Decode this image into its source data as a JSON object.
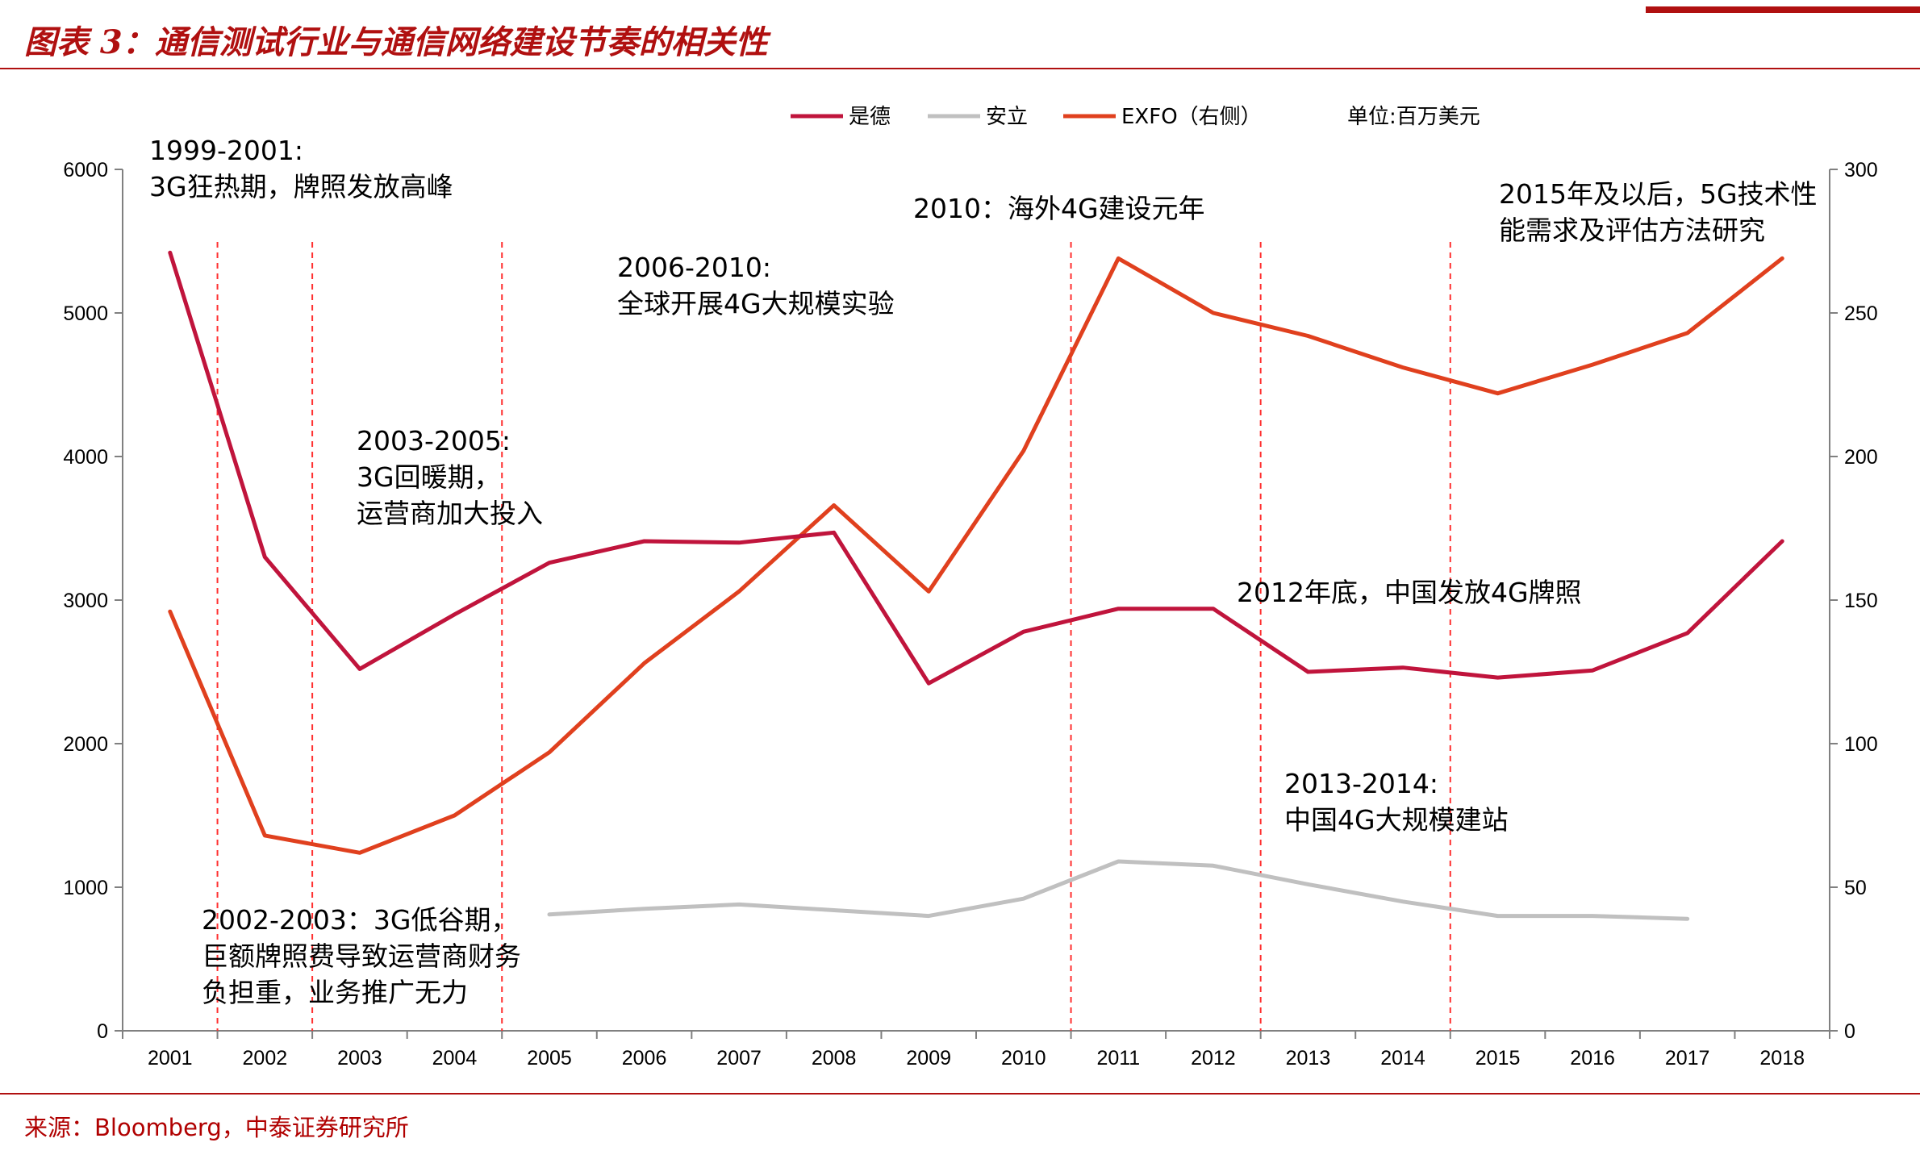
{
  "title": "图表 3：通信测试行业与通信网络建设节奏的相关性",
  "source": "来源：Bloomberg，中泰证券研究所",
  "unit_label": "单位:百万美元",
  "colors": {
    "brand": "#b01010",
    "keysight": "#c0143c",
    "anritsu": "#c0c0c0",
    "exfo": "#e0401e",
    "divider": "#ff3030"
  },
  "chart_data": {
    "type": "line",
    "categories": [
      "2001",
      "2002",
      "2003",
      "2004",
      "2005",
      "2006",
      "2007",
      "2008",
      "2009",
      "2010",
      "2011",
      "2012",
      "2013",
      "2014",
      "2015",
      "2016",
      "2017",
      "2018"
    ],
    "ylim_left": [
      0,
      6000
    ],
    "yticks_left": [
      "0",
      "1000",
      "2000",
      "3000",
      "4000",
      "5000",
      "6000"
    ],
    "ylim_right": [
      0,
      300
    ],
    "yticks_right": [
      "0",
      "50",
      "100",
      "150",
      "200",
      "250",
      "300"
    ],
    "series": [
      {
        "name": "是德",
        "axis": "left",
        "color": "#c0143c",
        "values": [
          5420,
          3300,
          2520,
          2900,
          3260,
          3410,
          3400,
          3470,
          2420,
          2780,
          2940,
          2940,
          2500,
          2530,
          2460,
          2510,
          2770,
          3410
        ]
      },
      {
        "name": "安立",
        "axis": "left",
        "color": "#c0c0c0",
        "values": [
          null,
          null,
          null,
          null,
          810,
          850,
          880,
          840,
          800,
          920,
          1180,
          1150,
          1020,
          900,
          800,
          800,
          780,
          null
        ]
      },
      {
        "name": "EXFO（右侧）",
        "axis": "right",
        "color": "#e0401e",
        "values": [
          146,
          68,
          62,
          75,
          97,
          128,
          153,
          183,
          153,
          202,
          269,
          250,
          242,
          231,
          222,
          232,
          243,
          269
        ]
      }
    ],
    "dividers_after": [
      "2001",
      "2002",
      "2004",
      "2010",
      "2012",
      "2014"
    ],
    "annotations": [
      {
        "lines": [
          "1999-2001:",
          "3G狂热期，牌照发放高峰"
        ]
      },
      {
        "lines": [
          "2010：海外4G建设元年"
        ]
      },
      {
        "lines": [
          "2006-2010:",
          "全球开展4G大规模实验"
        ]
      },
      {
        "lines": [
          "2015年及以后，5G技术性",
          "能需求及评估方法研究"
        ]
      },
      {
        "lines": [
          "2003-2005:",
          "3G回暖期，",
          "运营商加大投入"
        ]
      },
      {
        "lines": [
          "2012年底，中国发放4G牌照"
        ]
      },
      {
        "lines": [
          "2013-2014:",
          "中国4G大规模建站"
        ]
      },
      {
        "lines": [
          "2002-2003：3G低谷期，",
          "巨额牌照费导致运营商财务",
          "负担重，业务推广无力"
        ]
      }
    ]
  }
}
